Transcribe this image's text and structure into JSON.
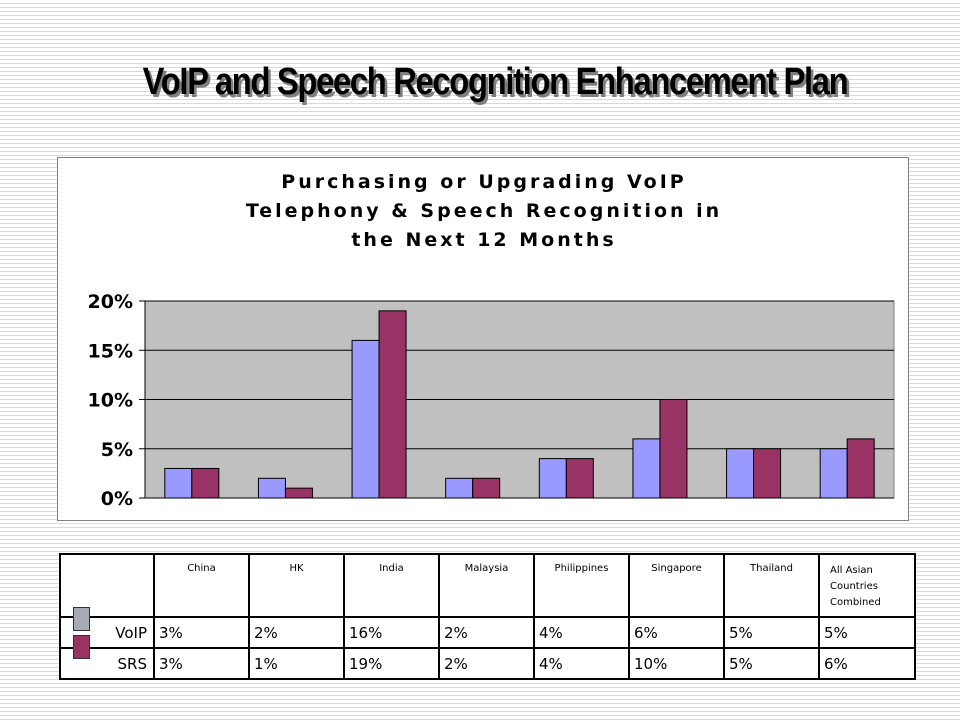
{
  "slide": {
    "title": "VoIP and Speech Recognition Enhancement Plan"
  },
  "chart_data": {
    "type": "bar",
    "title_lines": [
      "Purchasing or Upgrading VoIP",
      "Telephony & Speech Recognition in",
      "the Next 12 Months"
    ],
    "categories": [
      "China",
      "HK",
      "India",
      "Malaysia",
      "Philippines",
      "Singapore",
      "Thailand",
      "All Asian Countries Combined"
    ],
    "series": [
      {
        "name": "VoIP",
        "color": "#9999ff",
        "values": [
          3,
          2,
          16,
          2,
          4,
          6,
          5,
          5
        ]
      },
      {
        "name": "SRS",
        "color": "#993366",
        "values": [
          3,
          1,
          19,
          2,
          4,
          10,
          5,
          6
        ]
      }
    ],
    "yticks": [
      "0%",
      "5%",
      "10%",
      "15%",
      "20%"
    ],
    "ylim": [
      0,
      20
    ],
    "grid": true,
    "plot_background": "#c0c0c0"
  },
  "table": {
    "header_lines": [
      [
        "China"
      ],
      [
        "HK"
      ],
      [
        "India"
      ],
      [
        "Malaysia"
      ],
      [
        "Philippines"
      ],
      [
        "Singapore"
      ],
      [
        "Thailand"
      ],
      [
        "All Asian",
        "Countries",
        "Combined"
      ]
    ],
    "rows": [
      {
        "label": "VoIP",
        "swatch_color": "#a6aab5",
        "cells": [
          "3%",
          "2%",
          "16%",
          "2%",
          "4%",
          "6%",
          "5%",
          "5%"
        ]
      },
      {
        "label": "SRS",
        "swatch_color": "#993366",
        "cells": [
          "3%",
          "1%",
          "19%",
          "2%",
          "4%",
          "10%",
          "5%",
          "6%"
        ]
      }
    ]
  }
}
